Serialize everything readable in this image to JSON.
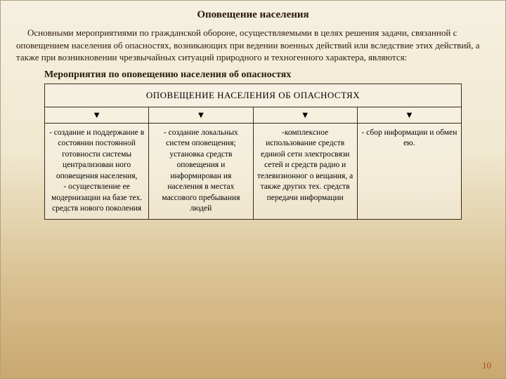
{
  "title": "Оповещение населения",
  "intro": "Основными мероприятиями по гражданской обороне, осуществляемыми в целях решения задачи, связанной с оповещением населения об опасностях, возникающих при ведении военных действий или вследствие этих действий, а также при возникновении чрезвычайных ситуаций природного и техногенного характера, являются:",
  "subtitle": "Мероприятия по оповещению населения об опасностях",
  "table": {
    "header": "ОПОВЕЩЕНИЕ НАСЕЛЕНИЯ ОБ ОПАСНОСТЯХ",
    "arrow": "▼",
    "columns": [
      "- создание и поддержание в состоянии постоянной готовности системы централизован ного оповещения населения,\n- осуществление ее модернизации на базе тех. средств нового поколения",
      "- создание локальных систем оповещения; установка средств оповещения и информирован ия населения в местах массового пребывания людей",
      "-комплексное использование средств единой сети электросвязи сетей и средств радио и телевизионног о вещания, а также других тех. средств передачи информации",
      "- сбор информации и обмен ею."
    ]
  },
  "pageNumber": "10",
  "colors": {
    "text": "#2a1a0a",
    "border": "#3a2a18",
    "pageNum": "#b04a1a"
  }
}
